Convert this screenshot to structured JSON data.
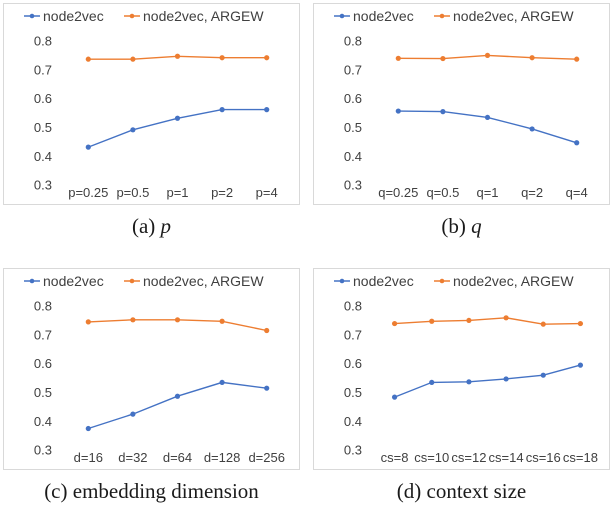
{
  "colors": {
    "node2vec": "#4472c4",
    "argew": "#ed7d31"
  },
  "chart_data": [
    {
      "type": "line",
      "caption_label": "(a)",
      "caption_letter": "p",
      "caption_text": "",
      "categories": [
        "p=0.25",
        "p=0.5",
        "p=1",
        "p=2",
        "p=4"
      ],
      "series": [
        {
          "name": "node2vec",
          "values": [
            0.43,
            0.49,
            0.53,
            0.56,
            0.56
          ]
        },
        {
          "name": "node2vec, ARGEW",
          "values": [
            0.735,
            0.735,
            0.745,
            0.74,
            0.74
          ]
        }
      ],
      "yticks": [
        "0.3",
        "0.4",
        "0.5",
        "0.6",
        "0.7",
        "0.8"
      ],
      "ylim": [
        0.25,
        0.85
      ],
      "legend": "top",
      "grid": false
    },
    {
      "type": "line",
      "caption_label": "(b)",
      "caption_letter": "q",
      "caption_text": "",
      "categories": [
        "q=0.25",
        "q=0.5",
        "q=1",
        "q=2",
        "q=4"
      ],
      "series": [
        {
          "name": "node2vec",
          "values": [
            0.555,
            0.553,
            0.533,
            0.493,
            0.445
          ]
        },
        {
          "name": "node2vec, ARGEW",
          "values": [
            0.738,
            0.737,
            0.748,
            0.74,
            0.735
          ]
        }
      ],
      "yticks": [
        "0.3",
        "0.4",
        "0.5",
        "0.6",
        "0.7",
        "0.8"
      ],
      "ylim": [
        0.25,
        0.85
      ],
      "legend": "top",
      "grid": false
    },
    {
      "type": "line",
      "caption_label": "(c)",
      "caption_letter": "",
      "caption_text": "embedding dimension",
      "categories": [
        "d=16",
        "d=32",
        "d=64",
        "d=128",
        "d=256"
      ],
      "series": [
        {
          "name": "node2vec",
          "values": [
            0.373,
            0.423,
            0.485,
            0.533,
            0.513
          ]
        },
        {
          "name": "node2vec, ARGEW",
          "values": [
            0.743,
            0.75,
            0.75,
            0.745,
            0.713
          ]
        }
      ],
      "yticks": [
        "0.3",
        "0.4",
        "0.5",
        "0.6",
        "0.7",
        "0.8"
      ],
      "ylim": [
        0.25,
        0.85
      ],
      "legend": "top",
      "grid": false
    },
    {
      "type": "line",
      "caption_label": "(d)",
      "caption_letter": "",
      "caption_text": "context size",
      "categories": [
        "cs=8",
        "cs=10",
        "cs=12",
        "cs=14",
        "cs=16",
        "cs=18"
      ],
      "series": [
        {
          "name": "node2vec",
          "values": [
            0.482,
            0.533,
            0.535,
            0.545,
            0.558,
            0.593
          ]
        },
        {
          "name": "node2vec, ARGEW",
          "values": [
            0.737,
            0.745,
            0.748,
            0.757,
            0.735,
            0.737
          ]
        }
      ],
      "yticks": [
        "0.3",
        "0.4",
        "0.5",
        "0.6",
        "0.7",
        "0.8"
      ],
      "ylim": [
        0.25,
        0.85
      ],
      "legend": "top",
      "grid": false
    }
  ]
}
